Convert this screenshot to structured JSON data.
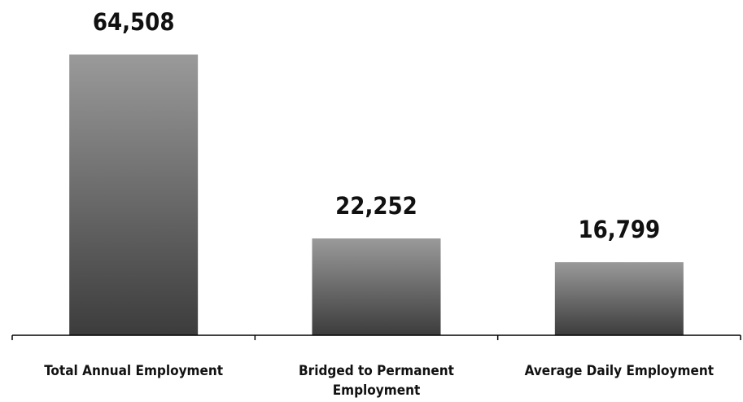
{
  "chart_data": {
    "type": "bar",
    "categories": [
      [
        "Total Annual Employment"
      ],
      [
        "Bridged to Permanent",
        "Employment"
      ],
      [
        "Average Daily Employment"
      ]
    ],
    "values": [
      64508,
      22252,
      16799
    ],
    "value_labels": [
      "64,508",
      "22,252",
      "16,799"
    ],
    "title": "",
    "xlabel": "",
    "ylabel": "",
    "ylim": [
      0,
      64508
    ],
    "grid": false,
    "legend": "none",
    "colors": {
      "bar_top": "#9a9a9a",
      "bar_bottom": "#3c3c3c",
      "axis": "#000000",
      "text": "#111111"
    }
  }
}
